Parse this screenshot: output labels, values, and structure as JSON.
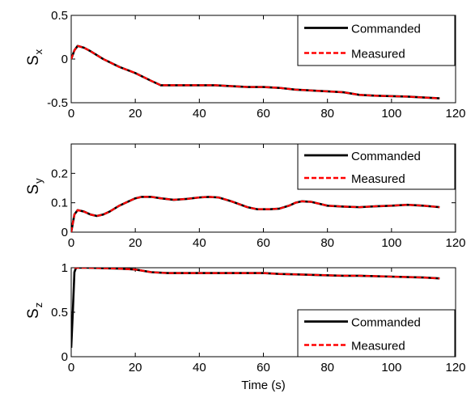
{
  "chart_data": [
    {
      "type": "line",
      "ylabel": "S",
      "ylabel_sub": "x",
      "xlabel": "",
      "xlim": [
        0,
        120
      ],
      "ylim": [
        -0.5,
        0.5
      ],
      "xticks": [
        "0",
        "20",
        "40",
        "60",
        "80",
        "100",
        "120"
      ],
      "yticks": [
        "-0.5",
        "0",
        "0.5"
      ],
      "grid": false,
      "legend_position": "top-right",
      "series": [
        {
          "name": "Commanded",
          "color": "#000000",
          "style": "solid",
          "points": [
            [
              0,
              0
            ],
            [
              1,
              0.1
            ],
            [
              2,
              0.15
            ],
            [
              4,
              0.13
            ],
            [
              6,
              0.09
            ],
            [
              10,
              0.0
            ],
            [
              15,
              -0.09
            ],
            [
              20,
              -0.16
            ],
            [
              25,
              -0.25
            ],
            [
              28,
              -0.3
            ],
            [
              35,
              -0.3
            ],
            [
              45,
              -0.3
            ],
            [
              55,
              -0.32
            ],
            [
              60,
              -0.32
            ],
            [
              65,
              -0.33
            ],
            [
              70,
              -0.35
            ],
            [
              80,
              -0.37
            ],
            [
              85,
              -0.38
            ],
            [
              90,
              -0.41
            ],
            [
              95,
              -0.42
            ],
            [
              105,
              -0.43
            ],
            [
              115,
              -0.45
            ]
          ]
        },
        {
          "name": "Measured",
          "color": "#ff0000",
          "style": "dashed",
          "points": [
            [
              0,
              0
            ],
            [
              1,
              0.1
            ],
            [
              2,
              0.15
            ],
            [
              4,
              0.13
            ],
            [
              6,
              0.09
            ],
            [
              10,
              0.0
            ],
            [
              15,
              -0.09
            ],
            [
              20,
              -0.16
            ],
            [
              25,
              -0.25
            ],
            [
              28,
              -0.3
            ],
            [
              35,
              -0.3
            ],
            [
              45,
              -0.3
            ],
            [
              55,
              -0.32
            ],
            [
              60,
              -0.32
            ],
            [
              65,
              -0.33
            ],
            [
              70,
              -0.35
            ],
            [
              80,
              -0.37
            ],
            [
              85,
              -0.38
            ],
            [
              90,
              -0.41
            ],
            [
              95,
              -0.42
            ],
            [
              105,
              -0.43
            ],
            [
              115,
              -0.45
            ]
          ]
        }
      ]
    },
    {
      "type": "line",
      "ylabel": "S",
      "ylabel_sub": "y",
      "xlabel": "",
      "xlim": [
        0,
        120
      ],
      "ylim": [
        0,
        0.3
      ],
      "xticks": [
        "0",
        "20",
        "40",
        "60",
        "80",
        "100",
        "120"
      ],
      "yticks": [
        "0",
        "0.1",
        "0.2"
      ],
      "grid": false,
      "legend_position": "top-right",
      "series": [
        {
          "name": "Commanded",
          "color": "#000000",
          "style": "solid",
          "points": [
            [
              0,
              0
            ],
            [
              0.5,
              0.03
            ],
            [
              1,
              0.06
            ],
            [
              2,
              0.075
            ],
            [
              4,
              0.07
            ],
            [
              6,
              0.06
            ],
            [
              8,
              0.055
            ],
            [
              10,
              0.06
            ],
            [
              12,
              0.07
            ],
            [
              15,
              0.09
            ],
            [
              18,
              0.105
            ],
            [
              20,
              0.115
            ],
            [
              22,
              0.12
            ],
            [
              25,
              0.12
            ],
            [
              28,
              0.115
            ],
            [
              32,
              0.11
            ],
            [
              36,
              0.113
            ],
            [
              40,
              0.118
            ],
            [
              43,
              0.12
            ],
            [
              46,
              0.118
            ],
            [
              50,
              0.105
            ],
            [
              55,
              0.085
            ],
            [
              58,
              0.078
            ],
            [
              62,
              0.078
            ],
            [
              65,
              0.08
            ],
            [
              68,
              0.09
            ],
            [
              70,
              0.1
            ],
            [
              72,
              0.105
            ],
            [
              75,
              0.103
            ],
            [
              80,
              0.09
            ],
            [
              85,
              0.087
            ],
            [
              90,
              0.085
            ],
            [
              95,
              0.088
            ],
            [
              100,
              0.09
            ],
            [
              105,
              0.093
            ],
            [
              110,
              0.09
            ],
            [
              115,
              0.085
            ]
          ]
        },
        {
          "name": "Measured",
          "color": "#ff0000",
          "style": "dashed",
          "points": [
            [
              0,
              0
            ],
            [
              0.5,
              0.03
            ],
            [
              1,
              0.06
            ],
            [
              2,
              0.075
            ],
            [
              4,
              0.07
            ],
            [
              6,
              0.06
            ],
            [
              8,
              0.055
            ],
            [
              10,
              0.06
            ],
            [
              12,
              0.07
            ],
            [
              15,
              0.09
            ],
            [
              18,
              0.105
            ],
            [
              20,
              0.115
            ],
            [
              22,
              0.12
            ],
            [
              25,
              0.12
            ],
            [
              28,
              0.115
            ],
            [
              32,
              0.11
            ],
            [
              36,
              0.113
            ],
            [
              40,
              0.118
            ],
            [
              43,
              0.12
            ],
            [
              46,
              0.118
            ],
            [
              50,
              0.105
            ],
            [
              55,
              0.085
            ],
            [
              58,
              0.078
            ],
            [
              62,
              0.078
            ],
            [
              65,
              0.08
            ],
            [
              68,
              0.09
            ],
            [
              70,
              0.1
            ],
            [
              72,
              0.105
            ],
            [
              75,
              0.103
            ],
            [
              80,
              0.09
            ],
            [
              85,
              0.087
            ],
            [
              90,
              0.085
            ],
            [
              95,
              0.088
            ],
            [
              100,
              0.09
            ],
            [
              105,
              0.093
            ],
            [
              110,
              0.09
            ],
            [
              115,
              0.085
            ]
          ]
        }
      ]
    },
    {
      "type": "line",
      "ylabel": "S",
      "ylabel_sub": "z",
      "xlabel": "Time (s)",
      "xlim": [
        0,
        120
      ],
      "ylim": [
        0,
        1
      ],
      "xticks": [
        "0",
        "20",
        "40",
        "60",
        "80",
        "100",
        "120"
      ],
      "yticks": [
        "0",
        "0.5",
        "1"
      ],
      "grid": false,
      "legend_position": "bottom-right",
      "series": [
        {
          "name": "Commanded",
          "color": "#000000",
          "style": "solid",
          "points": [
            [
              0,
              0.1
            ],
            [
              0.5,
              0.5
            ],
            [
              1,
              0.95
            ],
            [
              1.5,
              1.0
            ],
            [
              5,
              1.0
            ],
            [
              15,
              0.99
            ],
            [
              20,
              0.98
            ],
            [
              25,
              0.95
            ],
            [
              30,
              0.94
            ],
            [
              40,
              0.94
            ],
            [
              60,
              0.94
            ],
            [
              65,
              0.93
            ],
            [
              75,
              0.92
            ],
            [
              85,
              0.91
            ],
            [
              90,
              0.91
            ],
            [
              100,
              0.9
            ],
            [
              110,
              0.89
            ],
            [
              115,
              0.88
            ]
          ]
        },
        {
          "name": "Measured",
          "color": "#ff0000",
          "style": "dashed",
          "points": [
            [
              1,
              1.0
            ],
            [
              5,
              1.0
            ],
            [
              15,
              0.99
            ],
            [
              20,
              0.98
            ],
            [
              25,
              0.95
            ],
            [
              30,
              0.94
            ],
            [
              40,
              0.94
            ],
            [
              60,
              0.94
            ],
            [
              65,
              0.93
            ],
            [
              75,
              0.92
            ],
            [
              85,
              0.91
            ],
            [
              90,
              0.91
            ],
            [
              100,
              0.9
            ],
            [
              110,
              0.89
            ],
            [
              115,
              0.88
            ]
          ]
        }
      ]
    }
  ]
}
